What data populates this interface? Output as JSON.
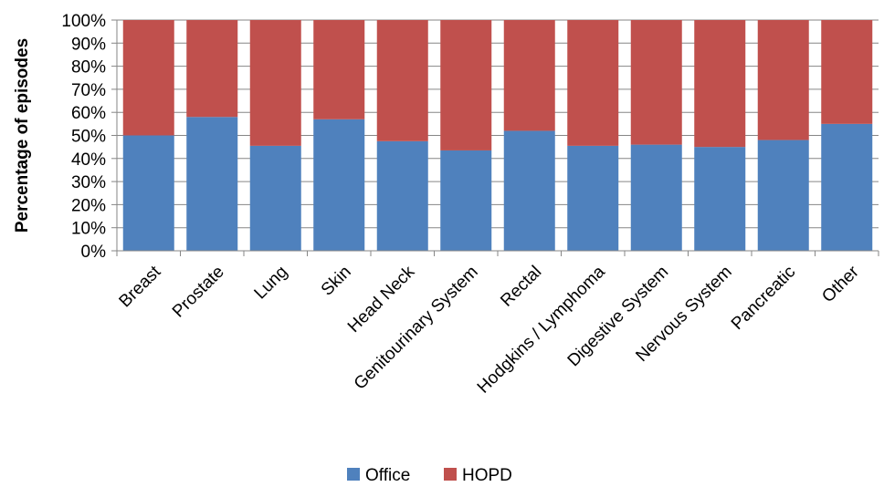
{
  "chart_data": {
    "type": "bar",
    "stacked": true,
    "percent_stacked": true,
    "categories": [
      "Breast",
      "Prostate",
      "Lung",
      "Skin",
      "Head Neck",
      "Genitourinary System",
      "Rectal",
      "Hodgkins / Lymphoma",
      "Digestive System",
      "Nervous System",
      "Pancreatic",
      "Other"
    ],
    "series": [
      {
        "name": "Office",
        "color": "#4f81bd",
        "values": [
          50,
          58,
          45.5,
          57,
          47.5,
          43.5,
          52,
          45.5,
          46,
          45,
          48,
          55
        ]
      },
      {
        "name": "HOPD",
        "color": "#c0504d",
        "values": [
          50,
          42,
          54.5,
          43,
          52.5,
          56.5,
          48,
          54.5,
          54,
          55,
          52,
          45
        ]
      }
    ],
    "ylabel": "Percentage of episodes",
    "ylim": [
      0,
      100
    ],
    "yticks": [
      "0%",
      "10%",
      "20%",
      "30%",
      "40%",
      "50%",
      "60%",
      "70%",
      "80%",
      "90%",
      "100%"
    ],
    "grid": true,
    "legend": "bottom-center"
  }
}
